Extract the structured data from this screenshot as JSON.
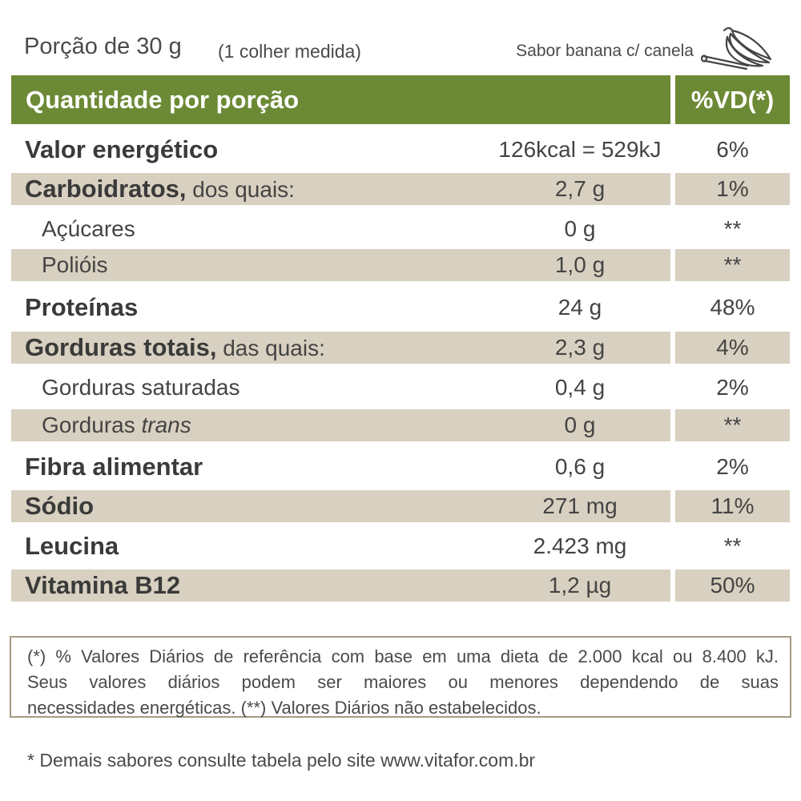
{
  "portion": {
    "label": "Porção de 30 g",
    "measure": "(1 colher medida)",
    "flavor": "Sabor banana c/ canela",
    "flavor_icon": "banana-cinnamon-icon"
  },
  "header": {
    "title": "Quantidade por porção",
    "vd": "%VD(*)",
    "color": "#6c8a35"
  },
  "rows": [
    {
      "name": "Valor energético",
      "suffix": "",
      "amount": "126kcal = 529kJ",
      "vd": "6%"
    },
    {
      "name": "Carboidratos,",
      "suffix": " dos quais:",
      "amount": "2,7 g",
      "vd": "1%"
    },
    {
      "name": "Açúcares",
      "amount": "0 g",
      "vd": "**"
    },
    {
      "name": "Polióis",
      "amount": "1,0 g",
      "vd": "**"
    },
    {
      "name": "Proteínas",
      "suffix": "",
      "amount": "24 g",
      "vd": "48%"
    },
    {
      "name": "Gorduras totais,",
      "suffix": " das quais:",
      "amount": "2,3 g",
      "vd": "4%"
    },
    {
      "name": "Gorduras saturadas",
      "amount": "0,4 g",
      "vd": "2%"
    },
    {
      "name": "Gorduras ",
      "italic": "trans",
      "amount": "0 g",
      "vd": "**"
    },
    {
      "name": "Fibra alimentar",
      "suffix": "",
      "amount": "0,6 g",
      "vd": "2%"
    },
    {
      "name": "Sódio",
      "suffix": "",
      "amount": "271 mg",
      "vd": "11%"
    },
    {
      "name": "Leucina",
      "suffix": "",
      "amount": "2.423 mg",
      "vd": "**"
    },
    {
      "name": "Vitamina B12",
      "suffix": "",
      "amount": "1,2 µg",
      "vd": "50%"
    }
  ],
  "notes": {
    "line1": "(*) % Valores Diários de referência com base em uma dieta de 2.000 kcal ou 8.400 kJ.",
    "line2": "Seus valores diários podem ser maiores ou menores dependendo de suas",
    "line3": "necessidades energéticas. (**) Valores Diários não estabelecidos."
  },
  "footer": "* Demais sabores consulte tabela pelo site www.vitafor.com.br",
  "colors": {
    "shade": "#d8d0c0",
    "border": "#a59a83"
  }
}
